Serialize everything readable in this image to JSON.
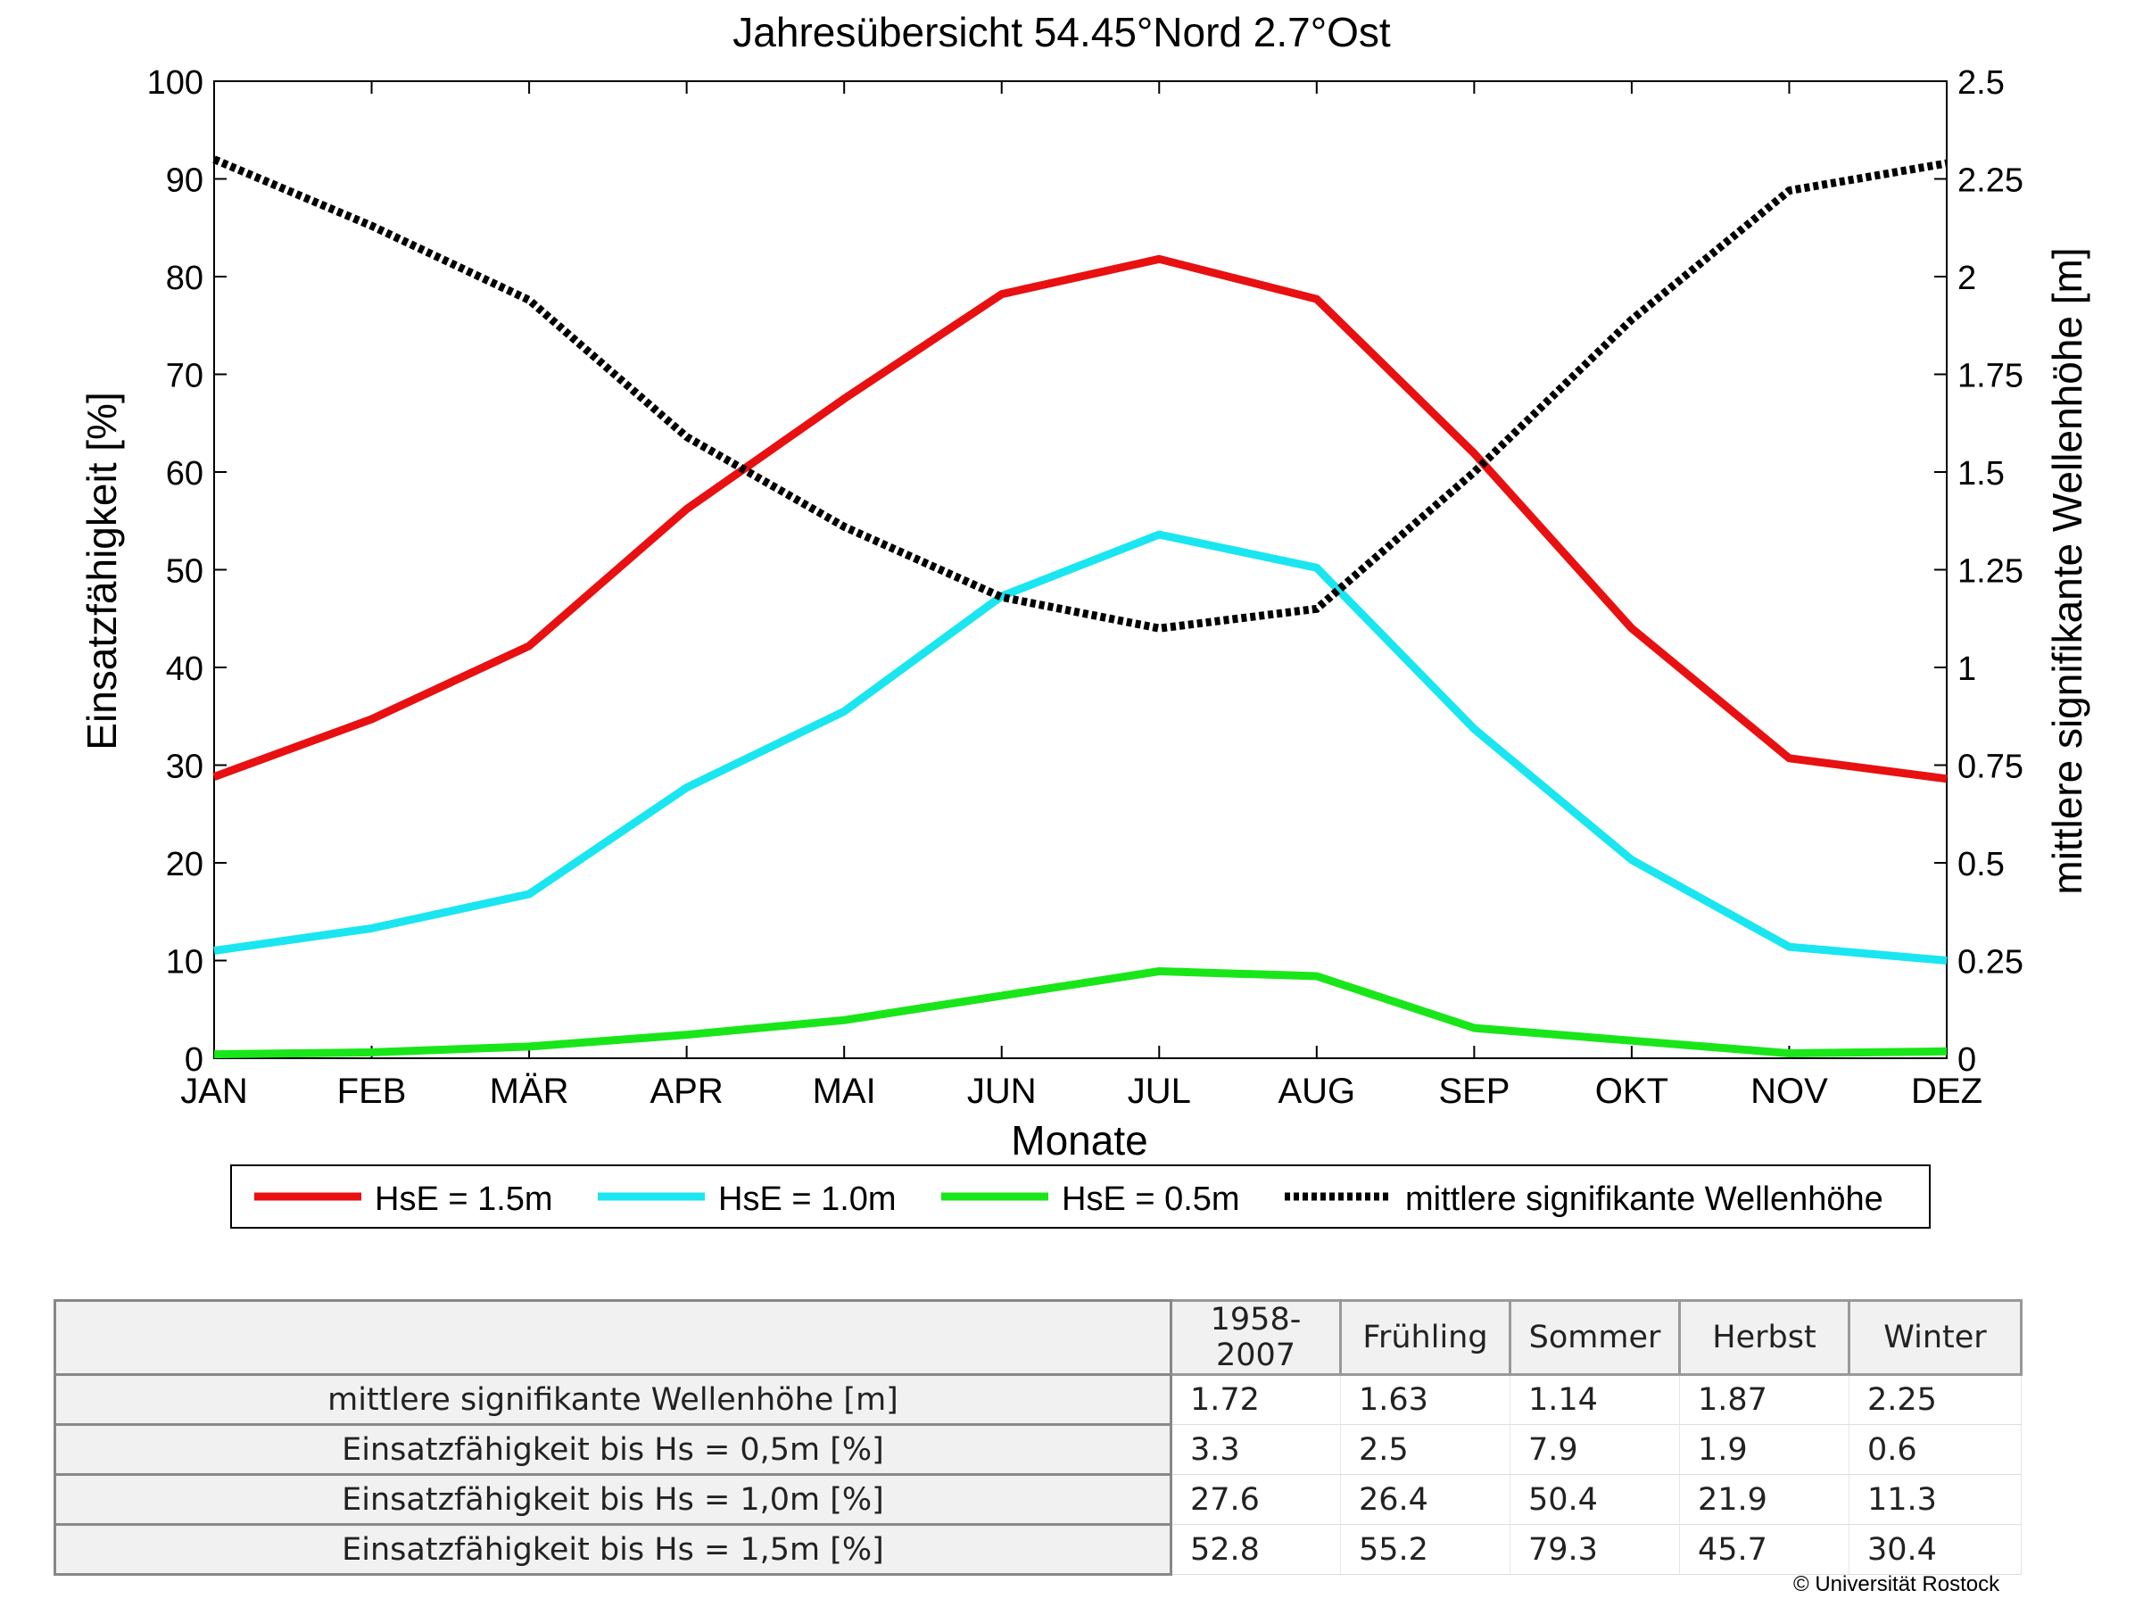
{
  "chart_data": {
    "type": "line",
    "title": "Jahresübersicht  54.45°Nord  2.7°Ost",
    "xlabel": "Monate",
    "ylabel": "Einsatzfähigkeit [%]",
    "y2label": "mittlere signifikante Wellenhöhe [m]",
    "categories": [
      "JAN",
      "FEB",
      "MÄR",
      "APR",
      "MAI",
      "JUN",
      "JUL",
      "AUG",
      "SEP",
      "OKT",
      "NOV",
      "DEZ"
    ],
    "ylim": [
      0,
      100
    ],
    "y2lim": [
      0,
      2.5
    ],
    "yticks": [
      "0",
      "10",
      "20",
      "30",
      "40",
      "50",
      "60",
      "70",
      "80",
      "90",
      "100"
    ],
    "y2ticks": [
      "0",
      "0.25",
      "0.5",
      "0.75",
      "1",
      "1.25",
      "1.5",
      "1.75",
      "2",
      "2.25",
      "2.5"
    ],
    "grid": false,
    "legend_position": "bottom",
    "series": [
      {
        "name": "HsE = 1.5m",
        "axis": "left",
        "color": "#e81010",
        "style": "solid",
        "values": [
          28.8,
          34.7,
          42.2,
          56.2,
          67.5,
          78.2,
          81.8,
          77.7,
          61.9,
          44.0,
          30.7,
          28.6
        ]
      },
      {
        "name": "HsE = 1.0m",
        "axis": "left",
        "color": "#19e6f0",
        "style": "solid",
        "values": [
          11.0,
          13.3,
          16.8,
          27.7,
          35.5,
          47.3,
          53.6,
          50.2,
          33.7,
          20.3,
          11.4,
          10.0
        ]
      },
      {
        "name": "HsE = 0.5m",
        "axis": "left",
        "color": "#19e619",
        "style": "solid",
        "values": [
          0.4,
          0.6,
          1.2,
          2.4,
          3.9,
          6.4,
          8.9,
          8.4,
          3.1,
          1.8,
          0.5,
          0.7
        ]
      },
      {
        "name": "mittlere signifikante Wellenhöhe",
        "axis": "right",
        "color": "#000000",
        "style": "dotted",
        "values": [
          2.3,
          2.13,
          1.94,
          1.59,
          1.36,
          1.18,
          1.1,
          1.15,
          1.5,
          1.89,
          2.22,
          2.29
        ]
      }
    ]
  },
  "table": {
    "headers": [
      "1958-2007",
      "Frühling",
      "Sommer",
      "Herbst",
      "Winter"
    ],
    "rows": [
      {
        "label": "mittlere signifikante Wellenhöhe [m]",
        "values": [
          "1.72",
          "1.63",
          "1.14",
          "1.87",
          "2.25"
        ]
      },
      {
        "label": "Einsatzfähigkeit bis Hs = 0,5m [%]",
        "values": [
          "3.3",
          "2.5",
          "7.9",
          "1.9",
          "0.6"
        ]
      },
      {
        "label": "Einsatzfähigkeit bis Hs = 1,0m [%]",
        "values": [
          "27.6",
          "26.4",
          "50.4",
          "21.9",
          "11.3"
        ]
      },
      {
        "label": "Einsatzfähigkeit bis Hs = 1,5m [%]",
        "values": [
          "52.8",
          "55.2",
          "79.3",
          "45.7",
          "30.4"
        ]
      }
    ]
  },
  "footer": {
    "copyright": "© Universität Rostock"
  }
}
